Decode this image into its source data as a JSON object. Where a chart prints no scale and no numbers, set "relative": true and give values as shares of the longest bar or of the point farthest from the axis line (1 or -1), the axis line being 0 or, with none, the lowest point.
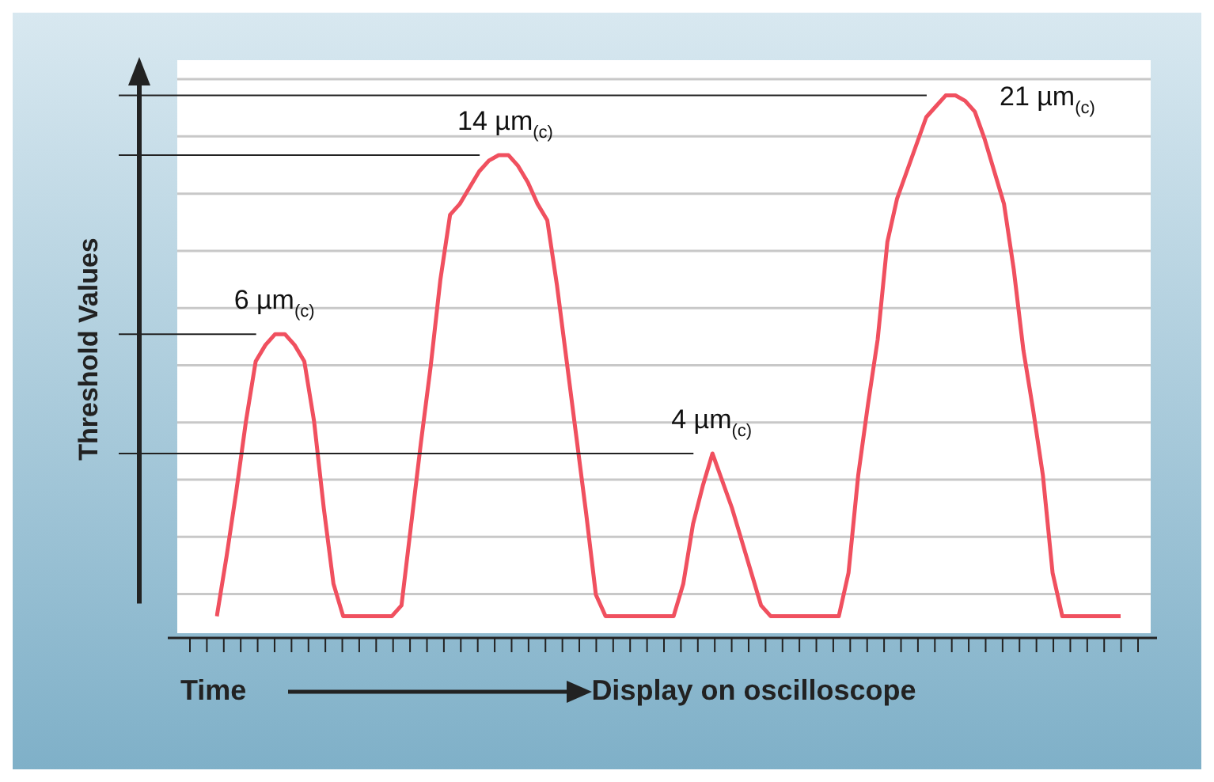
{
  "chart_data": {
    "type": "line",
    "relative": true,
    "ylabel": "Threshold Values",
    "xlabel": "Time",
    "annotations": [
      "Display on oscilloscope"
    ],
    "grid": "y",
    "legend": false,
    "marker": "none",
    "line_style": "solid",
    "categories": [
      null,
      null,
      null,
      null,
      null,
      null,
      null,
      null,
      null,
      null,
      null,
      null,
      null,
      null,
      null,
      null,
      null,
      null,
      null,
      null,
      null,
      null,
      null,
      null,
      null,
      null,
      null,
      null,
      null,
      null,
      null,
      null,
      null,
      null,
      null,
      null,
      null,
      null,
      null,
      null,
      null,
      null,
      null,
      null,
      null,
      null,
      null,
      null,
      null,
      null,
      null,
      null,
      null,
      null,
      null,
      null,
      null,
      null,
      null,
      null,
      null,
      null,
      null,
      null,
      null,
      null,
      null,
      null,
      null,
      null,
      null,
      null,
      null,
      null,
      null,
      null,
      null,
      null,
      null,
      null,
      null,
      null,
      null,
      null,
      null,
      null,
      null,
      null,
      null,
      null,
      null,
      null,
      null,
      null
    ],
    "series": [
      {
        "color": "#f0505f",
        "values": [
          0.04,
          0.15,
          0.27,
          0.4,
          0.51,
          0.54,
          0.56,
          0.56,
          0.54,
          0.51,
          0.4,
          0.24,
          0.1,
          0.04,
          0.04,
          0.04,
          0.04,
          0.04,
          0.04,
          0.06,
          0.21,
          0.36,
          0.5,
          0.66,
          0.78,
          0.8,
          0.83,
          0.86,
          0.88,
          0.89,
          0.89,
          0.87,
          0.84,
          0.8,
          0.77,
          0.65,
          0.51,
          0.37,
          0.23,
          0.08,
          0.04,
          0.04,
          0.04,
          0.04,
          0.04,
          0.04,
          0.04,
          0.04,
          0.1,
          0.21,
          0.28,
          0.34,
          0.29,
          0.24,
          0.18,
          0.12,
          0.06,
          0.04,
          0.04,
          0.04,
          0.04,
          0.04,
          0.04,
          0.04,
          0.04,
          0.12,
          0.3,
          0.43,
          0.55,
          0.73,
          0.81,
          0.86,
          0.91,
          0.96,
          0.98,
          1,
          1,
          0.99,
          0.97,
          0.92,
          0.86,
          0.8,
          0.68,
          0.53,
          0.42,
          0.3,
          0.12,
          0.04,
          0.04,
          0.04,
          0.04,
          0.04,
          0.04,
          0.04
        ]
      }
    ],
    "ref_lines": [
      {
        "axis": "y",
        "value": 0.56,
        "label": "6 µm$_{(c)}$",
        "color": "#222222"
      },
      {
        "axis": "y",
        "value": 0.89,
        "label": "14 µm$_{(c)}$",
        "color": "#222222"
      },
      {
        "axis": "y",
        "value": 0.34,
        "label": "4 µm$_{(c)}$",
        "color": "#222222"
      },
      {
        "axis": "y",
        "value": 1,
        "label": "21 µm$_{(c)}$",
        "color": "#222222"
      }
    ]
  }
}
